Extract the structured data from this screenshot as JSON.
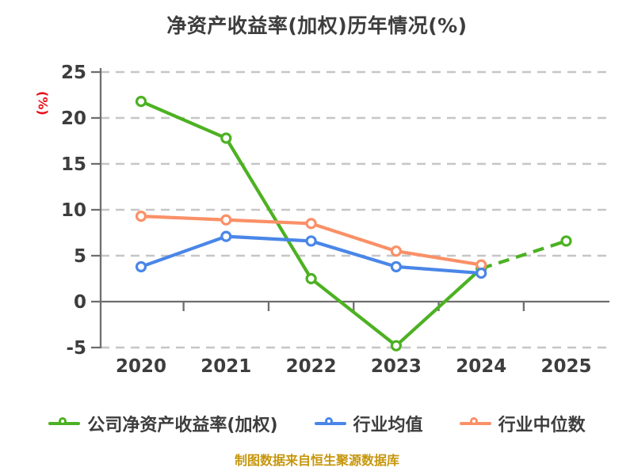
{
  "title": "净资产收益率(加权)历年情况(%)",
  "y_axis_unit_label": "(%)",
  "footer": "制图数据来自恒生聚源数据库",
  "colors": {
    "title_text": "#3d3d3d",
    "tick_label": "#3d3d3d",
    "axis": "#6e6e6e",
    "gridline": "#c6c6c6",
    "unit_label": "#e8101a",
    "footer_text": "#c6960c",
    "company_green": "#4cb122",
    "industry_mean_blue": "#4a86e8",
    "industry_median_orange": "#fa9067"
  },
  "chart_data": {
    "type": "line",
    "title": "净资产收益率(加权)历年情况(%)",
    "xlabel": "",
    "ylabel": "(%)",
    "categories": [
      "2020",
      "2021",
      "2022",
      "2023",
      "2024",
      "2025"
    ],
    "y_ticks": [
      25,
      20,
      15,
      10,
      5,
      0,
      -5
    ],
    "ylim": [
      -5,
      25
    ],
    "grid": "horizontal-dashed",
    "legend_position": "bottom",
    "series": [
      {
        "id": "company-roe-weighted",
        "name": "公司净资产收益率(加权)",
        "color": "#4cb122",
        "values": [
          21.8,
          17.8,
          2.5,
          -4.8,
          3.6,
          6.6
        ],
        "last_segment_dashed": true
      },
      {
        "id": "industry-mean",
        "name": "行业均值",
        "color": "#4a86e8",
        "values": [
          3.8,
          7.1,
          6.6,
          3.8,
          3.1,
          null
        ],
        "last_segment_dashed": false
      },
      {
        "id": "industry-median",
        "name": "行业中位数",
        "color": "#fa9067",
        "values": [
          9.3,
          8.9,
          8.5,
          5.5,
          4.0,
          null
        ],
        "last_segment_dashed": false
      }
    ]
  }
}
